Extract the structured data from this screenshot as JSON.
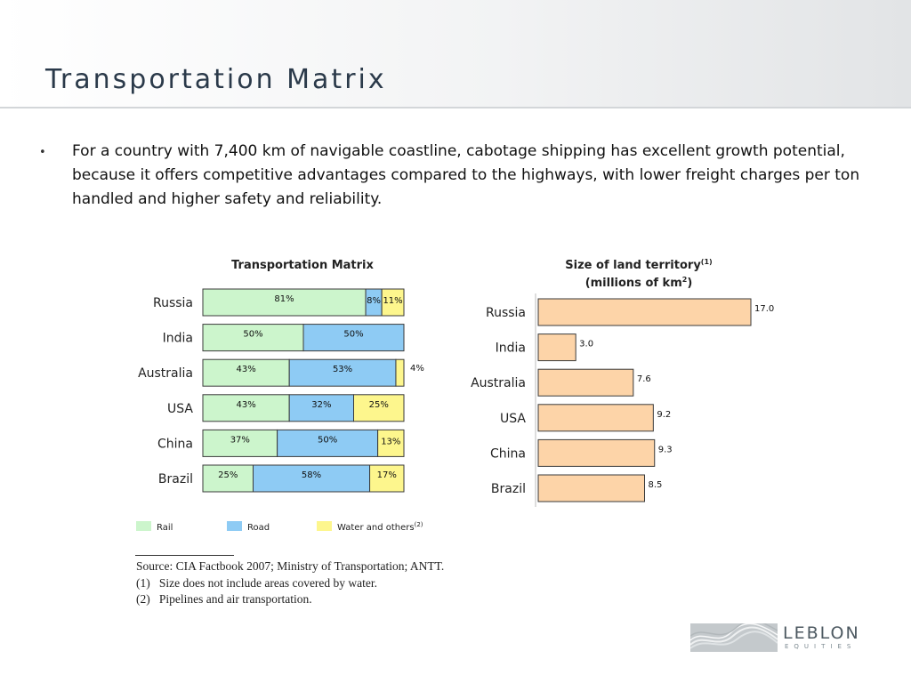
{
  "page": {
    "title": "Transportation Matrix",
    "bullet": "For a country with 7,400 km of navigable coastline, cabotage shipping has excellent growth potential, because it offers competitive advantages compared to the highways, with lower freight charges per ton handled and higher safety and reliability."
  },
  "chart_data": [
    {
      "type": "bar",
      "stacked": true,
      "orientation": "horizontal",
      "title": "Transportation Matrix",
      "categories": [
        "Russia",
        "India",
        "Australia",
        "USA",
        "China",
        "Brazil"
      ],
      "series": [
        {
          "name": "Rail",
          "color": "#ccf5cc",
          "values": [
            81,
            50,
            43,
            43,
            37,
            25
          ]
        },
        {
          "name": "Road",
          "color": "#8ecbf4",
          "values": [
            8,
            50,
            53,
            32,
            50,
            58
          ]
        },
        {
          "name": "Water and others",
          "name_superscript": "(2)",
          "color": "#fdf68d",
          "values": [
            11,
            0,
            4,
            25,
            13,
            17
          ]
        }
      ],
      "value_suffix": "%",
      "xlim": [
        0,
        100
      ],
      "legend": "bottom",
      "grid": false
    },
    {
      "type": "bar",
      "orientation": "horizontal",
      "title_line1": "Size of land territory",
      "title_line1_superscript": "(1)",
      "title_line2": "(millions of km",
      "title_line2_superscript": "2",
      "title_line2_end": ")",
      "categories": [
        "Russia",
        "India",
        "Australia",
        "USA",
        "China",
        "Brazil"
      ],
      "values": [
        "17.0",
        "3.0",
        "7.6",
        "9.2",
        "9.3",
        "8.5"
      ],
      "color": "#fdd4a8",
      "xlim": [
        0,
        17.0
      ],
      "grid": false
    }
  ],
  "notes": {
    "source": "Source: CIA Factbook 2007; Ministry of Transportation; ANTT.",
    "note1_marker": "(1)",
    "note1": "Size does not include areas covered by water.",
    "note2_marker": "(2)",
    "note2": "Pipelines and air transportation."
  },
  "logo": {
    "name": "LEBLON",
    "sub": "EQUITIES"
  }
}
